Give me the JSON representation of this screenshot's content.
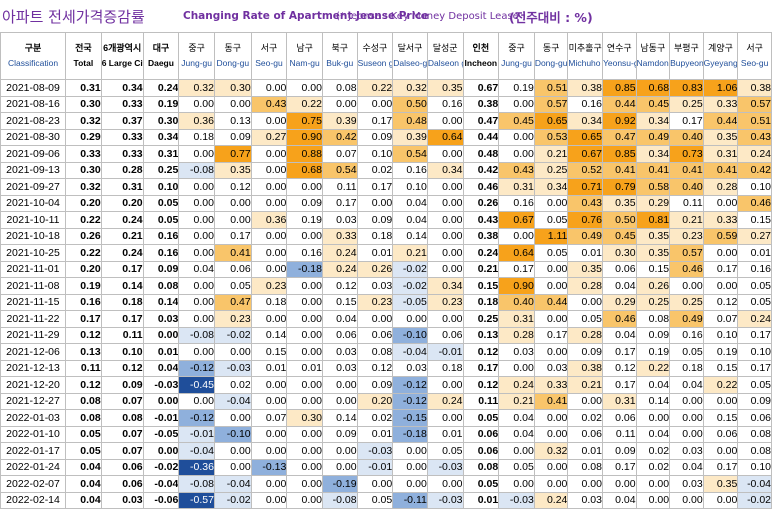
{
  "title": {
    "main": "아파트 전세가격증감률",
    "english": "Changing Rate of Apartment Jeonse Price",
    "note": "(* Jeonse : Key Money Deposit Lease )",
    "unit": "(전주대비 : %)"
  },
  "header": {
    "classification": {
      "ko": "구분",
      "en": "Classification"
    },
    "columns": [
      {
        "ko": "전국",
        "en": "Total",
        "kind": "agg"
      },
      {
        "ko": "6개광역시",
        "en": "6 Large Cities",
        "kind": "agg"
      },
      {
        "ko": "대구",
        "en": "Daegu",
        "kind": "city"
      },
      {
        "ko": "중구",
        "en": "Jung-gu",
        "kind": "dist"
      },
      {
        "ko": "동구",
        "en": "Dong-gu",
        "kind": "dist"
      },
      {
        "ko": "서구",
        "en": "Seo-gu",
        "kind": "dist"
      },
      {
        "ko": "남구",
        "en": "Nam-gu",
        "kind": "dist"
      },
      {
        "ko": "북구",
        "en": "Buk-gu",
        "kind": "dist"
      },
      {
        "ko": "수성구",
        "en": "Suseon g-gu",
        "kind": "dist"
      },
      {
        "ko": "달서구",
        "en": "Dalseo-gu",
        "kind": "dist"
      },
      {
        "ko": "달성군",
        "en": "Dalseon g-gun",
        "kind": "dist"
      },
      {
        "ko": "인천",
        "en": "Incheon",
        "kind": "city"
      },
      {
        "ko": "중구",
        "en": "Jung-gu",
        "kind": "dist"
      },
      {
        "ko": "동구",
        "en": "Dong-gu",
        "kind": "dist"
      },
      {
        "ko": "미추홀구",
        "en": "Michuho l-gu",
        "kind": "dist"
      },
      {
        "ko": "연수구",
        "en": "Yeonsu-gu",
        "kind": "dist"
      },
      {
        "ko": "남동구",
        "en": "Namdon g-gu",
        "kind": "dist"
      },
      {
        "ko": "부평구",
        "en": "Bupyeon g-gu",
        "kind": "dist"
      },
      {
        "ko": "계양구",
        "en": "Gyeyang -gu",
        "kind": "dist"
      },
      {
        "ko": "서구",
        "en": "Seo-gu",
        "kind": "dist"
      }
    ]
  },
  "rows": [
    {
      "date": "2021-08-09",
      "v": [
        "0.31",
        "0.34",
        "0.24",
        "0.32",
        "0.30",
        "0.00",
        "0.00",
        "0.08",
        "0.22",
        "0.32",
        "0.35",
        "0.67",
        "0.19",
        "0.51",
        "0.38",
        "0.85",
        "0.68",
        "0.83",
        "1.06",
        "0.38"
      ]
    },
    {
      "date": "2021-08-16",
      "v": [
        "0.30",
        "0.33",
        "0.19",
        "0.00",
        "0.00",
        "0.43",
        "0.22",
        "0.00",
        "0.00",
        "0.50",
        "0.16",
        "0.38",
        "0.00",
        "0.57",
        "0.16",
        "0.44",
        "0.45",
        "0.25",
        "0.33",
        "0.57"
      ]
    },
    {
      "date": "2021-08-23",
      "v": [
        "0.32",
        "0.37",
        "0.30",
        "0.36",
        "0.13",
        "0.00",
        "0.75",
        "0.39",
        "0.17",
        "0.48",
        "0.00",
        "0.47",
        "0.45",
        "0.65",
        "0.34",
        "0.92",
        "0.34",
        "0.17",
        "0.44",
        "0.51"
      ]
    },
    {
      "date": "2021-08-30",
      "v": [
        "0.29",
        "0.33",
        "0.34",
        "0.18",
        "0.09",
        "0.27",
        "0.90",
        "0.42",
        "0.09",
        "0.39",
        "0.64",
        "0.44",
        "0.00",
        "0.53",
        "0.65",
        "0.47",
        "0.49",
        "0.40",
        "0.35",
        "0.43"
      ]
    },
    {
      "date": "2021-09-06",
      "v": [
        "0.33",
        "0.33",
        "0.31",
        "0.00",
        "0.77",
        "0.00",
        "0.88",
        "0.07",
        "0.10",
        "0.54",
        "0.00",
        "0.48",
        "0.00",
        "0.21",
        "0.67",
        "0.85",
        "0.34",
        "0.73",
        "0.31",
        "0.24"
      ]
    },
    {
      "date": "2021-09-13",
      "v": [
        "0.30",
        "0.28",
        "0.25",
        "-0.08",
        "0.35",
        "0.00",
        "0.68",
        "0.54",
        "0.02",
        "0.16",
        "0.34",
        "0.42",
        "0.43",
        "0.25",
        "0.52",
        "0.41",
        "0.41",
        "0.41",
        "0.41",
        "0.42"
      ]
    },
    {
      "date": "2021-09-27",
      "v": [
        "0.32",
        "0.31",
        "0.10",
        "0.00",
        "0.12",
        "0.00",
        "0.00",
        "0.11",
        "0.17",
        "0.10",
        "0.00",
        "0.46",
        "0.31",
        "0.34",
        "0.71",
        "0.79",
        "0.58",
        "0.40",
        "0.28",
        "0.10"
      ]
    },
    {
      "date": "2021-10-04",
      "v": [
        "0.20",
        "0.20",
        "0.05",
        "0.00",
        "0.00",
        "0.00",
        "0.09",
        "0.17",
        "0.00",
        "0.04",
        "0.00",
        "0.26",
        "0.16",
        "0.00",
        "0.43",
        "0.35",
        "0.29",
        "0.11",
        "0.00",
        "0.46"
      ]
    },
    {
      "date": "2021-10-11",
      "v": [
        "0.22",
        "0.24",
        "0.05",
        "0.00",
        "0.00",
        "0.36",
        "0.19",
        "0.03",
        "0.09",
        "0.04",
        "0.00",
        "0.43",
        "0.67",
        "0.05",
        "0.76",
        "0.50",
        "0.81",
        "0.21",
        "0.33",
        "0.15"
      ]
    },
    {
      "date": "2021-10-18",
      "v": [
        "0.26",
        "0.21",
        "0.16",
        "0.00",
        "0.17",
        "0.00",
        "0.00",
        "0.33",
        "0.18",
        "0.14",
        "0.00",
        "0.38",
        "0.00",
        "1.11",
        "0.49",
        "0.45",
        "0.35",
        "0.23",
        "0.59",
        "0.27"
      ]
    },
    {
      "date": "2021-10-25",
      "v": [
        "0.22",
        "0.24",
        "0.16",
        "0.00",
        "0.41",
        "0.00",
        "0.16",
        "0.24",
        "0.01",
        "0.21",
        "0.00",
        "0.24",
        "0.64",
        "0.05",
        "0.01",
        "0.30",
        "0.35",
        "0.57",
        "0.00",
        "0.01"
      ]
    },
    {
      "date": "2021-11-01",
      "v": [
        "0.20",
        "0.17",
        "0.09",
        "0.04",
        "0.06",
        "0.00",
        "-0.18",
        "0.24",
        "0.26",
        "-0.02",
        "0.00",
        "0.21",
        "0.17",
        "0.00",
        "0.35",
        "0.06",
        "0.15",
        "0.46",
        "0.17",
        "0.16"
      ]
    },
    {
      "date": "2021-11-08",
      "v": [
        "0.19",
        "0.14",
        "0.08",
        "0.00",
        "0.05",
        "0.23",
        "0.00",
        "0.12",
        "0.03",
        "-0.02",
        "0.34",
        "0.15",
        "0.90",
        "0.00",
        "0.28",
        "0.04",
        "0.26",
        "0.00",
        "0.00",
        "0.05"
      ]
    },
    {
      "date": "2021-11-15",
      "v": [
        "0.16",
        "0.18",
        "0.14",
        "0.00",
        "0.47",
        "0.18",
        "0.00",
        "0.15",
        "0.23",
        "-0.05",
        "0.23",
        "0.18",
        "0.40",
        "0.44",
        "0.00",
        "0.29",
        "0.25",
        "0.25",
        "0.12",
        "0.05"
      ]
    },
    {
      "date": "2021-11-22",
      "v": [
        "0.17",
        "0.17",
        "0.03",
        "0.00",
        "0.23",
        "0.00",
        "0.00",
        "0.04",
        "0.00",
        "0.00",
        "0.00",
        "0.25",
        "0.31",
        "0.00",
        "0.05",
        "0.46",
        "0.08",
        "0.49",
        "0.07",
        "0.24"
      ]
    },
    {
      "date": "2021-11-29",
      "v": [
        "0.12",
        "0.11",
        "0.00",
        "-0.08",
        "-0.02",
        "0.14",
        "0.00",
        "0.06",
        "0.06",
        "-0.10",
        "0.06",
        "0.13",
        "0.28",
        "0.17",
        "0.28",
        "0.04",
        "0.09",
        "0.16",
        "0.10",
        "0.17"
      ]
    },
    {
      "date": "2021-12-06",
      "v": [
        "0.13",
        "0.10",
        "0.01",
        "0.00",
        "0.00",
        "0.15",
        "0.00",
        "0.03",
        "0.08",
        "-0.04",
        "-0.01",
        "0.12",
        "0.03",
        "0.00",
        "0.09",
        "0.17",
        "0.19",
        "0.05",
        "0.19",
        "0.10"
      ]
    },
    {
      "date": "2021-12-13",
      "v": [
        "0.11",
        "0.12",
        "0.04",
        "-0.12",
        "-0.03",
        "0.01",
        "0.01",
        "0.03",
        "0.12",
        "0.03",
        "0.18",
        "0.17",
        "0.00",
        "0.03",
        "0.38",
        "0.12",
        "0.22",
        "0.18",
        "0.15",
        "0.17"
      ]
    },
    {
      "date": "2021-12-20",
      "v": [
        "0.12",
        "0.09",
        "-0.03",
        "-0.45",
        "0.02",
        "0.00",
        "0.00",
        "0.00",
        "0.09",
        "-0.12",
        "0.00",
        "0.12",
        "0.24",
        "0.33",
        "0.21",
        "0.17",
        "0.04",
        "0.04",
        "0.22",
        "0.05"
      ]
    },
    {
      "date": "2021-12-27",
      "v": [
        "0.08",
        "0.07",
        "0.00",
        "0.00",
        "-0.04",
        "0.00",
        "0.00",
        "0.00",
        "0.20",
        "-0.12",
        "0.24",
        "0.11",
        "0.21",
        "0.41",
        "0.00",
        "0.31",
        "0.14",
        "0.00",
        "0.00",
        "0.09"
      ]
    },
    {
      "date": "2022-01-03",
      "v": [
        "0.08",
        "0.08",
        "-0.01",
        "-0.12",
        "0.00",
        "0.07",
        "0.30",
        "0.14",
        "0.02",
        "-0.15",
        "0.00",
        "0.05",
        "0.04",
        "0.00",
        "0.02",
        "0.06",
        "0.00",
        "0.00",
        "0.15",
        "0.06"
      ]
    },
    {
      "date": "2022-01-10",
      "v": [
        "0.05",
        "0.07",
        "-0.05",
        "-0.01",
        "-0.10",
        "0.00",
        "0.00",
        "0.09",
        "0.01",
        "-0.18",
        "0.01",
        "0.06",
        "0.04",
        "0.00",
        "0.06",
        "0.11",
        "0.04",
        "0.00",
        "0.06",
        "0.08"
      ]
    },
    {
      "date": "2022-01-17",
      "v": [
        "0.05",
        "0.07",
        "0.00",
        "-0.04",
        "0.00",
        "0.00",
        "0.00",
        "0.00",
        "-0.03",
        "0.00",
        "0.05",
        "0.06",
        "0.00",
        "0.32",
        "0.01",
        "0.09",
        "0.02",
        "0.03",
        "0.00",
        "0.08"
      ]
    },
    {
      "date": "2022-01-24",
      "v": [
        "0.04",
        "0.06",
        "-0.02",
        "-0.36",
        "0.00",
        "-0.13",
        "0.00",
        "0.00",
        "-0.01",
        "0.00",
        "-0.03",
        "0.08",
        "0.05",
        "0.00",
        "0.08",
        "0.17",
        "0.02",
        "0.04",
        "0.17",
        "0.10"
      ]
    },
    {
      "date": "2022-02-07",
      "v": [
        "0.04",
        "0.06",
        "-0.04",
        "-0.08",
        "-0.04",
        "0.00",
        "0.00",
        "-0.19",
        "0.00",
        "0.00",
        "0.00",
        "0.05",
        "0.00",
        "0.00",
        "0.00",
        "0.00",
        "0.00",
        "0.03",
        "0.35",
        "-0.04"
      ]
    },
    {
      "date": "2022-02-14",
      "v": [
        "0.04",
        "0.03",
        "-0.06",
        "-0.57",
        "-0.02",
        "0.00",
        "0.00",
        "-0.08",
        "0.05",
        "-0.11",
        "-0.03",
        "0.01",
        "-0.03",
        "0.24",
        "0.03",
        "0.04",
        "0.00",
        "0.00",
        "0.00",
        "-0.02"
      ]
    }
  ],
  "colors": {
    "high": "#f7a21b",
    "mid": "#f9c56a",
    "low": "#fde9c6",
    "neg_strong": "#1f4e9a",
    "neg_mid": "#8fb0dc",
    "neg_low": "#dbe6f4",
    "title": "#7030a0"
  }
}
